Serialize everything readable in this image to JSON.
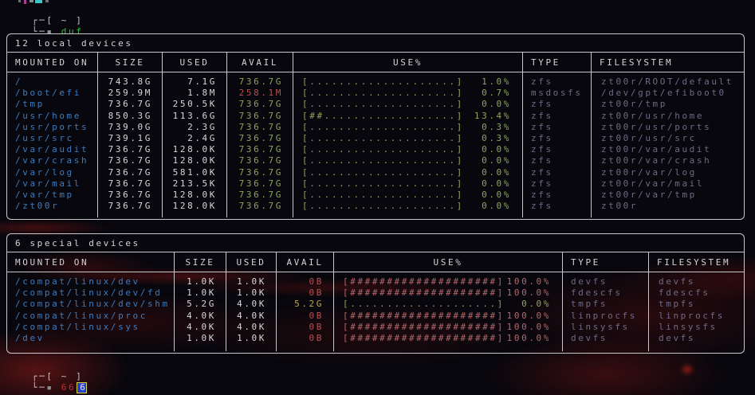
{
  "colors": {
    "mount_blue": "#3d7cc0",
    "green": "#8fa65a",
    "red": "#b45252",
    "bar_red": "#b3696d",
    "yellow": "#c8a351",
    "type_muted": "#6f6b87",
    "table_border": "#c7c8cc",
    "command_green": "#2fbf44",
    "typed_red": "#c42e2e",
    "cursor_bg": "#2840c8",
    "cursor_border": "#d8d03c"
  },
  "prompt_top": {
    "frame1": "┌─[ ~ ]",
    "frame2": "└─",
    "bullet": "▪ ",
    "command": "duf"
  },
  "prompt_bottom": {
    "frame1": "┌─[ ~ ]",
    "frame2": "└─",
    "bullet": "▪ ",
    "typed": "66",
    "cursor_char": "6"
  },
  "tables": [
    {
      "title": "12 local devices",
      "headers": [
        "MOUNTED ON",
        "SIZE",
        "USED",
        "AVAIL",
        "USE%",
        "TYPE",
        "FILESYSTEM"
      ],
      "rows": [
        {
          "mount": "/",
          "size": "743.8G",
          "used": "7.1G",
          "avail": "736.7G",
          "avail_class": "green",
          "bar": "[....................]",
          "pct": "1.0%",
          "bar_class": "green",
          "type": "zfs",
          "fs": "zt00r/ROOT/default"
        },
        {
          "mount": "/boot/efi",
          "size": "259.9M",
          "used": "1.8M",
          "avail": "258.1M",
          "avail_class": "red",
          "bar": "[....................]",
          "pct": "0.7%",
          "bar_class": "green",
          "type": "msdosfs",
          "fs": "/dev/gpt/efiboot0"
        },
        {
          "mount": "/tmp",
          "size": "736.7G",
          "used": "250.5K",
          "avail": "736.7G",
          "avail_class": "green",
          "bar": "[....................]",
          "pct": "0.0%",
          "bar_class": "green",
          "type": "zfs",
          "fs": "zt00r/tmp"
        },
        {
          "mount": "/usr/home",
          "size": "850.3G",
          "used": "113.6G",
          "avail": "736.7G",
          "avail_class": "green",
          "bar": "[##..................]",
          "pct": "13.4%",
          "bar_class": "green",
          "type": "zfs",
          "fs": "zt00r/usr/home"
        },
        {
          "mount": "/usr/ports",
          "size": "739.0G",
          "used": "2.3G",
          "avail": "736.7G",
          "avail_class": "green",
          "bar": "[....................]",
          "pct": "0.3%",
          "bar_class": "green",
          "type": "zfs",
          "fs": "zt00r/usr/ports"
        },
        {
          "mount": "/usr/src",
          "size": "739.1G",
          "used": "2.4G",
          "avail": "736.7G",
          "avail_class": "green",
          "bar": "[....................]",
          "pct": "0.3%",
          "bar_class": "green",
          "type": "zfs",
          "fs": "zt00r/usr/src"
        },
        {
          "mount": "/var/audit",
          "size": "736.7G",
          "used": "128.0K",
          "avail": "736.7G",
          "avail_class": "green",
          "bar": "[....................]",
          "pct": "0.0%",
          "bar_class": "green",
          "type": "zfs",
          "fs": "zt00r/var/audit"
        },
        {
          "mount": "/var/crash",
          "size": "736.7G",
          "used": "128.0K",
          "avail": "736.7G",
          "avail_class": "green",
          "bar": "[....................]",
          "pct": "0.0%",
          "bar_class": "green",
          "type": "zfs",
          "fs": "zt00r/var/crash"
        },
        {
          "mount": "/var/log",
          "size": "736.7G",
          "used": "581.0K",
          "avail": "736.7G",
          "avail_class": "green",
          "bar": "[....................]",
          "pct": "0.0%",
          "bar_class": "green",
          "type": "zfs",
          "fs": "zt00r/var/log"
        },
        {
          "mount": "/var/mail",
          "size": "736.7G",
          "used": "213.5K",
          "avail": "736.7G",
          "avail_class": "green",
          "bar": "[....................]",
          "pct": "0.0%",
          "bar_class": "green",
          "type": "zfs",
          "fs": "zt00r/var/mail"
        },
        {
          "mount": "/var/tmp",
          "size": "736.7G",
          "used": "128.0K",
          "avail": "736.7G",
          "avail_class": "green",
          "bar": "[....................]",
          "pct": "0.0%",
          "bar_class": "green",
          "type": "zfs",
          "fs": "zt00r/var/tmp"
        },
        {
          "mount": "/zt00r",
          "size": "736.7G",
          "used": "128.0K",
          "avail": "736.7G",
          "avail_class": "green",
          "bar": "[....................]",
          "pct": "0.0%",
          "bar_class": "green",
          "type": "zfs",
          "fs": "zt00r"
        }
      ]
    },
    {
      "title": "6 special devices",
      "headers": [
        "MOUNTED ON",
        "SIZE",
        "USED",
        "AVAIL",
        "USE%",
        "TYPE",
        "FILESYSTEM"
      ],
      "rows": [
        {
          "mount": "/compat/linux/dev",
          "size": "1.0K",
          "used": "1.0K",
          "avail": "0B",
          "avail_class": "red",
          "bar": "[####################]",
          "pct": "100.0%",
          "bar_class": "redbar",
          "type": "devfs",
          "fs": "devfs"
        },
        {
          "mount": "/compat/linux/dev/fd",
          "size": "1.0K",
          "used": "1.0K",
          "avail": "0B",
          "avail_class": "red",
          "bar": "[####################]",
          "pct": "100.0%",
          "bar_class": "redbar",
          "type": "fdescfs",
          "fs": "fdescfs"
        },
        {
          "mount": "/compat/linux/dev/shm",
          "size": "5.2G",
          "used": "4.0K",
          "avail": "5.2G",
          "avail_class": "yellow",
          "bar": "[....................]",
          "pct": "0.0%",
          "bar_class": "green",
          "type": "tmpfs",
          "fs": "tmpfs"
        },
        {
          "mount": "/compat/linux/proc",
          "size": "4.0K",
          "used": "4.0K",
          "avail": "0B",
          "avail_class": "red",
          "bar": "[####################]",
          "pct": "100.0%",
          "bar_class": "redbar",
          "type": "linprocfs",
          "fs": "linprocfs"
        },
        {
          "mount": "/compat/linux/sys",
          "size": "4.0K",
          "used": "4.0K",
          "avail": "0B",
          "avail_class": "red",
          "bar": "[####################]",
          "pct": "100.0%",
          "bar_class": "redbar",
          "type": "linsysfs",
          "fs": "linsysfs"
        },
        {
          "mount": "/dev",
          "size": "1.0K",
          "used": "1.0K",
          "avail": "0B",
          "avail_class": "red",
          "bar": "[####################]",
          "pct": "100.0%",
          "bar_class": "redbar",
          "type": "devfs",
          "fs": "devfs"
        }
      ]
    }
  ]
}
